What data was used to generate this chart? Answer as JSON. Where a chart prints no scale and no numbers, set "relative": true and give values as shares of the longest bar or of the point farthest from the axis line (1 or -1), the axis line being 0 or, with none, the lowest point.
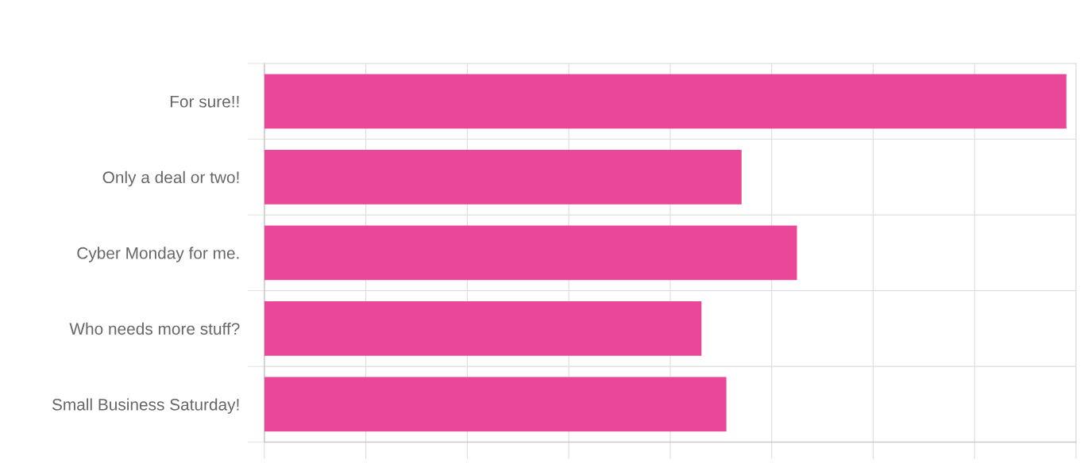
{
  "chart_data": {
    "type": "bar",
    "orientation": "horizontal",
    "relative": true,
    "grid": true,
    "categories": [
      "For sure!!",
      "Only a deal or two!",
      "Cyber Monday for me.",
      "Who needs more stuff?",
      "Small Business Saturday!"
    ],
    "values": [
      1,
      0.595,
      0.664,
      0.545,
      0.576
    ],
    "color": "#ea4799",
    "legend": false
  }
}
